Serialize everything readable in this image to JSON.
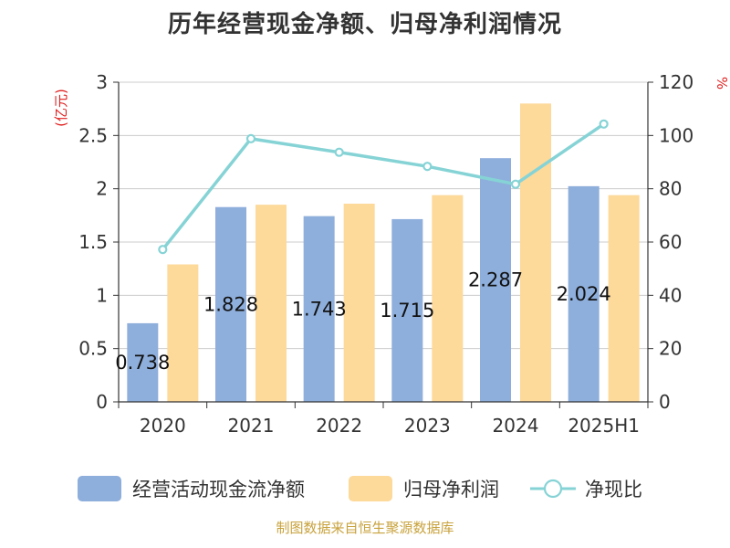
{
  "chart_data": {
    "type": "bar",
    "title": "历年经营现金净额、归母净利润情况",
    "categories": [
      "2020",
      "2021",
      "2022",
      "2023",
      "2024",
      "2025H1"
    ],
    "y_left": {
      "label": "(亿元)",
      "min": 0,
      "max": 3,
      "ticks": [
        "0",
        "0.5",
        "1",
        "1.5",
        "2",
        "2.5",
        "3"
      ]
    },
    "y_right": {
      "label": "%",
      "min": 0,
      "max": 120,
      "ticks": [
        "0",
        "20",
        "40",
        "60",
        "80",
        "100",
        "120"
      ]
    },
    "grid": true,
    "legend_position": "bottom",
    "series": [
      {
        "name": "经营活动现金流净额",
        "type": "bar",
        "axis": "left",
        "color": "#8eaedb",
        "values": [
          0.738,
          1.828,
          1.743,
          1.715,
          2.287,
          2.024
        ],
        "labels": [
          "0.738",
          "1.828",
          "1.743",
          "1.715",
          "2.287",
          "2.024"
        ]
      },
      {
        "name": "归母净利润",
        "type": "bar",
        "axis": "left",
        "color": "#fdd99a",
        "values": [
          1.29,
          1.85,
          1.86,
          1.94,
          2.8,
          1.94
        ]
      },
      {
        "name": "净现比",
        "type": "line",
        "axis": "right",
        "color": "#86d3d6",
        "values": [
          57.2,
          98.8,
          93.7,
          88.4,
          81.7,
          104.3
        ]
      }
    ]
  },
  "source": "制图数据来自恒生聚源数据库"
}
